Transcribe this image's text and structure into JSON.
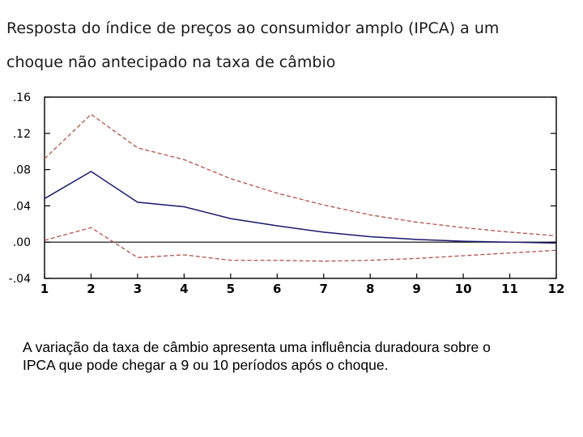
{
  "title": {
    "line1": "Resposta do índice de preços ao consumidor amplo (IPCA) a um",
    "line2": "choque não antecipado na taxa de câmbio"
  },
  "caption": {
    "line1": "A variação da taxa de câmbio apresenta uma influência duradoura sobre o",
    "line2": "IPCA que pode chegar a 9 ou 10 períodos após o choque."
  },
  "colors": {
    "response": "#1a1a6e",
    "bands": "#b5504a",
    "zero": "#000000",
    "frame": "#000000"
  },
  "chart_data": {
    "type": "line",
    "title": "Resposta do índice de preços ao consumidor amplo (IPCA) a um choque não antecipado na taxa de câmbio",
    "xlabel": "",
    "ylabel": "",
    "x": [
      1,
      2,
      3,
      4,
      5,
      6,
      7,
      8,
      9,
      10,
      11,
      12
    ],
    "ylim": [
      -0.04,
      0.16
    ],
    "yticks": [
      ".16",
      ".12",
      ".08",
      ".04",
      ".00",
      "-.04"
    ],
    "ytick_values": [
      0.16,
      0.12,
      0.08,
      0.04,
      0.0,
      -0.04
    ],
    "xticks": [
      "1",
      "2",
      "3",
      "4",
      "5",
      "6",
      "7",
      "8",
      "9",
      "10",
      "11",
      "12"
    ],
    "series": [
      {
        "name": "response",
        "style": "solid",
        "values": [
          0.048,
          0.078,
          0.044,
          0.039,
          0.026,
          0.018,
          0.011,
          0.006,
          0.003,
          0.001,
          0.0,
          -0.001
        ]
      },
      {
        "name": "upper band",
        "style": "dashed",
        "values": [
          0.092,
          0.141,
          0.104,
          0.091,
          0.07,
          0.054,
          0.041,
          0.03,
          0.022,
          0.016,
          0.011,
          0.007
        ]
      },
      {
        "name": "lower band",
        "style": "dashed",
        "values": [
          0.002,
          0.016,
          -0.017,
          -0.014,
          -0.02,
          -0.02,
          -0.021,
          -0.02,
          -0.018,
          -0.015,
          -0.012,
          -0.009
        ]
      }
    ]
  }
}
